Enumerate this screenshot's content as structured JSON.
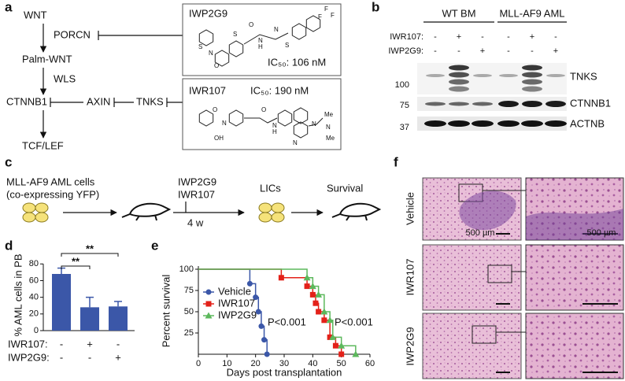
{
  "panel_labels": [
    "a",
    "b",
    "c",
    "d",
    "e",
    "f"
  ],
  "pathway": {
    "wnt": "WNT",
    "porcn": "PORCN",
    "palm_wnt": "Palm-WNT",
    "wls": "WLS",
    "ctnnb1": "CTNNB1",
    "axin": "AXIN",
    "tnks": "TNKS",
    "tcf_lef": "TCF/LEF"
  },
  "compounds": [
    {
      "name": "IWP2G9",
      "ic50": "IC₅₀: 106 nM",
      "atoms": [
        "F",
        "F",
        "F",
        "S",
        "O",
        "N",
        "H",
        "N",
        "S",
        "N",
        "O",
        "S"
      ]
    },
    {
      "name": "IWR107",
      "ic50": "IC₅₀: 190 nM",
      "atoms": [
        "O",
        "N",
        "OH",
        "O",
        "N",
        "H",
        "N",
        "Me",
        "N",
        "Me",
        "N"
      ]
    }
  ],
  "blot": {
    "groups": [
      "WT BM",
      "MLL-AF9 AML"
    ],
    "rows": [
      {
        "label": "IWR107:",
        "signs": [
          "-",
          "+",
          "-",
          "-",
          "+",
          "-"
        ]
      },
      {
        "label": "IWP2G9:",
        "signs": [
          "-",
          "-",
          "+",
          "-",
          "-",
          "+"
        ]
      }
    ],
    "markers": [
      "100",
      "75",
      "37"
    ],
    "proteins": [
      "TNKS",
      "CTNNB1",
      "ACTNB"
    ]
  },
  "schematic": {
    "cells": "MLL-AF9 AML cells",
    "cells_note": "(co-expressing YFP)",
    "drug1": "IWP2G9",
    "drug2": "IWR107",
    "duration": "4 w",
    "lics": "LICs",
    "survival": "Survival"
  },
  "histology": {
    "rows": [
      "Vehicle",
      "IWR107",
      "IWP2G9"
    ],
    "scale_bars": [
      "500 µm",
      "500 µm"
    ]
  },
  "chart_data": [
    {
      "type": "bar",
      "y_label": "% AML cells in PB",
      "categories": [
        null,
        null,
        null
      ],
      "values": [
        68,
        28,
        29
      ],
      "errors": [
        7,
        12,
        6
      ],
      "color": "#3b57a8",
      "ylim": [
        0,
        85
      ],
      "yticks": [
        0,
        20,
        40,
        60,
        80
      ],
      "treatment_rows": [
        {
          "label": "IWR107:",
          "signs": [
            "-",
            "+",
            "-"
          ]
        },
        {
          "label": "IWP2G9:",
          "signs": [
            "-",
            "-",
            "+"
          ]
        }
      ],
      "significance": [
        "**",
        "**"
      ]
    },
    {
      "type": "line",
      "step": true,
      "x_label": "Days post transplantation",
      "y_label": "Percent survival",
      "xlim": [
        0,
        60
      ],
      "xticks": [
        0,
        10,
        20,
        30,
        40,
        50,
        60
      ],
      "ylim": [
        0,
        100
      ],
      "yticks": [
        25,
        50,
        75,
        100
      ],
      "series": [
        {
          "name": "Vehicle",
          "color": "#3b57a8",
          "marker": "circle",
          "x": [
            0,
            18,
            20,
            21,
            22,
            23,
            24
          ],
          "values": [
            100,
            83,
            67,
            50,
            33,
            17,
            0
          ]
        },
        {
          "name": "IWR107",
          "color": "#e32119",
          "marker": "square",
          "x": [
            0,
            29,
            38,
            40,
            41,
            42,
            44,
            46,
            48,
            50
          ],
          "values": [
            100,
            90,
            80,
            70,
            60,
            50,
            40,
            20,
            10,
            0
          ]
        },
        {
          "name": "IWP2G9",
          "color": "#5cb85c",
          "marker": "triangle",
          "x": [
            0,
            38,
            40,
            42,
            44,
            46,
            47,
            50,
            55
          ],
          "values": [
            100,
            90,
            80,
            70,
            50,
            40,
            20,
            10,
            0
          ]
        }
      ],
      "annotations": [
        {
          "text": "P<0.001",
          "color": "#e32119"
        },
        {
          "text": "P<0.001",
          "color": "#3daa3d"
        }
      ]
    }
  ]
}
